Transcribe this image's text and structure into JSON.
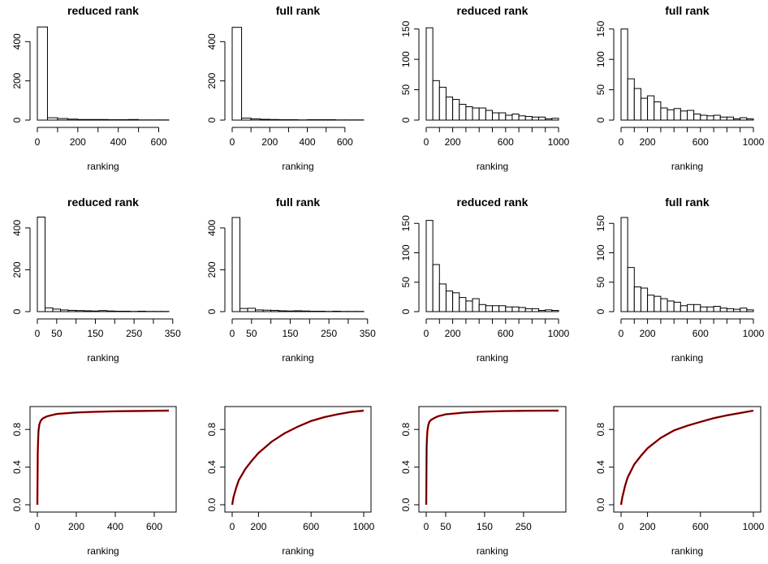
{
  "chart_data": [
    {
      "type": "histogram",
      "title": "reduced rank",
      "xlabel": "ranking",
      "ylabel": "",
      "xlim": [
        0,
        650
      ],
      "ylim": [
        0,
        480
      ],
      "xticks": [
        0,
        200,
        400,
        600
      ],
      "yticks": [
        0,
        200,
        400
      ],
      "bin_width": 50,
      "values": [
        475,
        12,
        8,
        5,
        3,
        3,
        3,
        2,
        2,
        3,
        1,
        1,
        1
      ]
    },
    {
      "type": "histogram",
      "title": "full rank",
      "xlabel": "ranking",
      "ylabel": "",
      "xlim": [
        0,
        700
      ],
      "ylim": [
        0,
        480
      ],
      "xticks": [
        0,
        200,
        400,
        600
      ],
      "yticks": [
        0,
        200,
        400
      ],
      "bin_width": 50,
      "values": [
        473,
        10,
        6,
        4,
        3,
        2,
        2,
        1,
        2,
        2,
        2,
        1,
        1,
        1
      ]
    },
    {
      "type": "histogram",
      "title": "reduced rank",
      "xlabel": "ranking",
      "ylabel": "",
      "xlim": [
        0,
        1000
      ],
      "ylim": [
        0,
        155
      ],
      "xticks": [
        0,
        200,
        600,
        1000
      ],
      "yticks": [
        0,
        50,
        100,
        150
      ],
      "bin_width": 50,
      "values": [
        152,
        65,
        54,
        38,
        34,
        26,
        22,
        20,
        20,
        16,
        12,
        12,
        8,
        10,
        7,
        6,
        5,
        5,
        2,
        3
      ]
    },
    {
      "type": "histogram",
      "title": "full rank",
      "xlabel": "ranking",
      "ylabel": "",
      "xlim": [
        0,
        1000
      ],
      "ylim": [
        0,
        155
      ],
      "xticks": [
        0,
        200,
        600,
        1000
      ],
      "yticks": [
        0,
        50,
        100,
        150
      ],
      "bin_width": 50,
      "values": [
        150,
        68,
        52,
        36,
        40,
        30,
        20,
        17,
        19,
        15,
        16,
        10,
        8,
        7,
        8,
        5,
        5,
        2,
        4,
        2
      ]
    },
    {
      "type": "histogram",
      "title": "reduced rank",
      "xlabel": "ranking",
      "ylabel": "",
      "xlim": [
        0,
        340
      ],
      "ylim": [
        0,
        450
      ],
      "xticks": [
        0,
        50,
        150,
        250,
        350
      ],
      "xtick_labels_shown": [
        0,
        50,
        150,
        250,
        350
      ],
      "yticks": [
        0,
        200,
        400
      ],
      "bin_width": 20,
      "values": [
        452,
        18,
        12,
        8,
        6,
        5,
        4,
        3,
        5,
        3,
        2,
        2,
        1,
        2,
        1,
        1,
        1
      ]
    },
    {
      "type": "histogram",
      "title": "full rank",
      "xlabel": "ranking",
      "ylabel": "",
      "xlim": [
        0,
        340
      ],
      "ylim": [
        0,
        450
      ],
      "xticks": [
        0,
        50,
        150,
        250,
        350
      ],
      "yticks": [
        0,
        200,
        400
      ],
      "bin_width": 20,
      "values": [
        450,
        15,
        16,
        8,
        7,
        6,
        4,
        3,
        4,
        3,
        2,
        2,
        1,
        2,
        1,
        1,
        1
      ]
    },
    {
      "type": "histogram",
      "title": "reduced rank",
      "xlabel": "ranking",
      "ylabel": "",
      "xlim": [
        0,
        1000
      ],
      "ylim": [
        0,
        160
      ],
      "xticks": [
        0,
        200,
        600,
        1000
      ],
      "yticks": [
        0,
        50,
        100,
        150
      ],
      "bin_width": 50,
      "values": [
        155,
        80,
        47,
        35,
        32,
        24,
        18,
        22,
        12,
        10,
        10,
        10,
        8,
        8,
        7,
        5,
        5,
        2,
        3,
        2
      ]
    },
    {
      "type": "histogram",
      "title": "full rank",
      "xlabel": "ranking",
      "ylabel": "",
      "xlim": [
        0,
        1000
      ],
      "ylim": [
        0,
        160
      ],
      "xticks": [
        0,
        200,
        600,
        1000
      ],
      "yticks": [
        0,
        50,
        100,
        150
      ],
      "bin_width": 50,
      "values": [
        160,
        75,
        42,
        40,
        28,
        26,
        22,
        18,
        16,
        10,
        12,
        12,
        8,
        8,
        9,
        6,
        5,
        4,
        6,
        3
      ]
    },
    {
      "type": "line",
      "title": "",
      "xlabel": "ranking",
      "ylabel": "",
      "xlim": [
        0,
        675
      ],
      "ylim": [
        0,
        1
      ],
      "xticks": [
        0,
        200,
        400,
        600
      ],
      "yticks": [
        0,
        0.4,
        0.8
      ],
      "ytick_labels": [
        "0.0",
        "0.4",
        "0.8"
      ],
      "series": [
        {
          "color": "#cc0000",
          "x": [
            0,
            2,
            4,
            6,
            10,
            15,
            20,
            30,
            50,
            100,
            200,
            300,
            400,
            500,
            600,
            675
          ],
          "y": [
            0.0,
            0.55,
            0.7,
            0.78,
            0.85,
            0.88,
            0.9,
            0.92,
            0.94,
            0.965,
            0.98,
            0.988,
            0.993,
            0.996,
            0.998,
            1.0
          ]
        },
        {
          "color": "#000000",
          "x": [
            0,
            2,
            4,
            6,
            10,
            15,
            20,
            30,
            50,
            100,
            200,
            300,
            400,
            500,
            600,
            675
          ],
          "y": [
            0.0,
            0.55,
            0.7,
            0.78,
            0.85,
            0.88,
            0.9,
            0.92,
            0.94,
            0.965,
            0.98,
            0.988,
            0.993,
            0.996,
            0.998,
            1.0
          ]
        }
      ]
    },
    {
      "type": "line",
      "title": "",
      "xlabel": "ranking",
      "ylabel": "",
      "xlim": [
        0,
        1000
      ],
      "ylim": [
        0,
        1
      ],
      "xticks": [
        0,
        200,
        600,
        1000
      ],
      "yticks": [
        0,
        0.4,
        0.8
      ],
      "ytick_labels": [
        "0.0",
        "0.4",
        "0.8"
      ],
      "series": [
        {
          "color": "#cc0000",
          "x": [
            0,
            10,
            30,
            50,
            100,
            150,
            200,
            300,
            400,
            500,
            600,
            700,
            800,
            900,
            1000
          ],
          "y": [
            0.0,
            0.08,
            0.18,
            0.26,
            0.38,
            0.47,
            0.55,
            0.67,
            0.76,
            0.83,
            0.89,
            0.93,
            0.96,
            0.985,
            1.0
          ]
        },
        {
          "color": "#000000",
          "x": [
            0,
            10,
            30,
            50,
            100,
            150,
            200,
            300,
            400,
            500,
            600,
            700,
            800,
            900,
            1000
          ],
          "y": [
            0.0,
            0.08,
            0.18,
            0.26,
            0.38,
            0.47,
            0.55,
            0.67,
            0.76,
            0.83,
            0.89,
            0.93,
            0.96,
            0.985,
            1.0
          ]
        }
      ]
    },
    {
      "type": "line",
      "title": "",
      "xlabel": "ranking",
      "ylabel": "",
      "xlim": [
        0,
        340
      ],
      "ylim": [
        0,
        1
      ],
      "xticks": [
        0,
        50,
        150,
        250
      ],
      "yticks": [
        0,
        0.4,
        0.8
      ],
      "ytick_labels": [
        "0.0",
        "0.4",
        "0.8"
      ],
      "series": [
        {
          "color": "#cc0000",
          "x": [
            0,
            1,
            2,
            3,
            5,
            8,
            12,
            20,
            30,
            50,
            100,
            150,
            200,
            250,
            300,
            340
          ],
          "y": [
            0.0,
            0.6,
            0.72,
            0.78,
            0.84,
            0.88,
            0.9,
            0.92,
            0.94,
            0.96,
            0.98,
            0.99,
            0.995,
            0.998,
            0.999,
            1.0
          ]
        },
        {
          "color": "#000000",
          "x": [
            0,
            1,
            2,
            3,
            5,
            8,
            12,
            20,
            30,
            50,
            100,
            150,
            200,
            250,
            300,
            340
          ],
          "y": [
            0.0,
            0.6,
            0.72,
            0.78,
            0.84,
            0.88,
            0.9,
            0.92,
            0.94,
            0.96,
            0.98,
            0.99,
            0.995,
            0.998,
            0.999,
            1.0
          ]
        }
      ]
    },
    {
      "type": "line",
      "title": "",
      "xlabel": "ranking",
      "ylabel": "",
      "xlim": [
        0,
        1000
      ],
      "ylim": [
        0,
        1
      ],
      "xticks": [
        0,
        200,
        600,
        1000
      ],
      "yticks": [
        0,
        0.4,
        0.8
      ],
      "ytick_labels": [
        "0.0",
        "0.4",
        "0.8"
      ],
      "series": [
        {
          "color": "#cc0000",
          "x": [
            0,
            10,
            30,
            50,
            100,
            150,
            200,
            300,
            400,
            500,
            600,
            700,
            800,
            900,
            1000
          ],
          "y": [
            0.0,
            0.08,
            0.2,
            0.29,
            0.43,
            0.52,
            0.6,
            0.71,
            0.79,
            0.84,
            0.88,
            0.92,
            0.95,
            0.975,
            1.0
          ]
        },
        {
          "color": "#000000",
          "x": [
            0,
            10,
            30,
            50,
            100,
            150,
            200,
            300,
            400,
            500,
            600,
            700,
            800,
            900,
            1000
          ],
          "y": [
            0.0,
            0.08,
            0.2,
            0.29,
            0.43,
            0.52,
            0.6,
            0.71,
            0.79,
            0.84,
            0.88,
            0.92,
            0.95,
            0.975,
            1.0
          ]
        }
      ]
    }
  ]
}
